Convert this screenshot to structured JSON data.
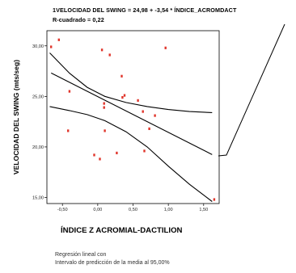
{
  "chart_data": {
    "type": "scatter",
    "equation_line": "1VELOCIDAD DEL SWING = 24,98 + -3,54 * ÍNDICE_ACROMDACT",
    "r_squared_line": "R-cuadrado = 0,22",
    "xlabel": "ÍNDICE Z ACROMIAL-DACTILION",
    "ylabel": "VELOCIDAD DEL SWING (mts/seg)",
    "x_ticks": [
      "-0,50",
      "0,00",
      "0,50",
      "1,00",
      "1,50"
    ],
    "y_ticks": [
      "15,00",
      "20,00",
      "25,00",
      "30,00"
    ],
    "xlim": [
      -0.72,
      1.72
    ],
    "ylim": [
      14.4,
      31.5
    ],
    "grid": false,
    "point_color": "#e0352b",
    "line_color": "#000000",
    "fit": {
      "intercept": 24.98,
      "slope": -3.54
    },
    "points": [
      {
        "x": -0.66,
        "y": 29.9
      },
      {
        "x": -0.55,
        "y": 30.6
      },
      {
        "x": -0.4,
        "y": 25.5
      },
      {
        "x": -0.42,
        "y": 21.6
      },
      {
        "x": -0.05,
        "y": 19.2
      },
      {
        "x": 0.03,
        "y": 18.8
      },
      {
        "x": 0.06,
        "y": 29.6
      },
      {
        "x": 0.17,
        "y": 29.1
      },
      {
        "x": 0.09,
        "y": 24.3
      },
      {
        "x": 0.09,
        "y": 23.9
      },
      {
        "x": 0.1,
        "y": 21.6
      },
      {
        "x": 0.27,
        "y": 19.4
      },
      {
        "x": 0.34,
        "y": 27.0
      },
      {
        "x": 0.35,
        "y": 24.9
      },
      {
        "x": 0.38,
        "y": 25.1
      },
      {
        "x": 0.57,
        "y": 24.6
      },
      {
        "x": 0.64,
        "y": 23.5
      },
      {
        "x": 0.66,
        "y": 19.6
      },
      {
        "x": 0.73,
        "y": 21.8
      },
      {
        "x": 0.81,
        "y": 23.1
      },
      {
        "x": 0.96,
        "y": 29.8
      },
      {
        "x": 1.65,
        "y": 14.8
      }
    ],
    "band_upper": [
      {
        "x": -0.68,
        "y": 29.3
      },
      {
        "x": -0.4,
        "y": 27.3
      },
      {
        "x": -0.15,
        "y": 25.9
      },
      {
        "x": 0.1,
        "y": 25.0
      },
      {
        "x": 0.4,
        "y": 24.4
      },
      {
        "x": 0.7,
        "y": 24.0
      },
      {
        "x": 1.0,
        "y": 23.7
      },
      {
        "x": 1.3,
        "y": 23.5
      },
      {
        "x": 1.62,
        "y": 23.4
      }
    ],
    "band_lower": [
      {
        "x": -0.68,
        "y": 24.0
      },
      {
        "x": -0.4,
        "y": 23.6
      },
      {
        "x": -0.15,
        "y": 23.2
      },
      {
        "x": 0.1,
        "y": 22.6
      },
      {
        "x": 0.4,
        "y": 21.5
      },
      {
        "x": 0.7,
        "y": 20.0
      },
      {
        "x": 1.0,
        "y": 18.1
      },
      {
        "x": 1.3,
        "y": 16.3
      },
      {
        "x": 1.62,
        "y": 14.6
      }
    ],
    "fit_x_range": [
      -0.66,
      1.62
    ],
    "annotation": [
      "Regresión lineal con",
      "Intervalo de predicción de la media al 95,00%"
    ]
  }
}
